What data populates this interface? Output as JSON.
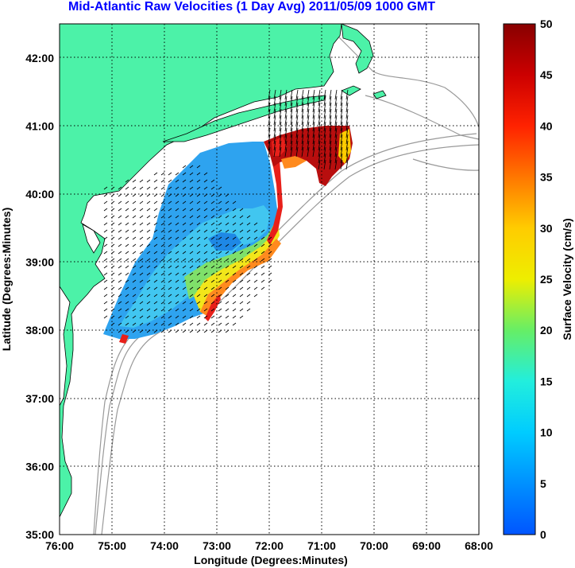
{
  "title": "Mid-Atlantic Raw Velocities (1 Day Avg) 2011/05/09 1000 GMT",
  "xlabel": "Longitude (Degrees:Minutes)",
  "ylabel": "Latitude (Degrees:Minutes)",
  "colorbar_label": "Surface Velocity (cm/s)",
  "x_ticks": [
    "76:00",
    "75:00",
    "74:00",
    "73:00",
    "72:00",
    "71:00",
    "70:00",
    "69:00",
    "68:00"
  ],
  "y_ticks": [
    "35:00",
    "36:00",
    "37:00",
    "38:00",
    "39:00",
    "40:00",
    "41:00",
    "42:00"
  ],
  "colorbar_ticks": [
    "0",
    "5",
    "10",
    "15",
    "20",
    "25",
    "30",
    "35",
    "40",
    "45",
    "50"
  ],
  "map_extent": {
    "lon_west": -76,
    "lon_east": -68,
    "lat_south": 35,
    "lat_north": 42.5
  },
  "colorbar_range": [
    0,
    50
  ],
  "colors": {
    "land": "#4cf2a8",
    "title": "#0000ff",
    "bathymetry": "#999999",
    "vectors": "#000000"
  }
}
